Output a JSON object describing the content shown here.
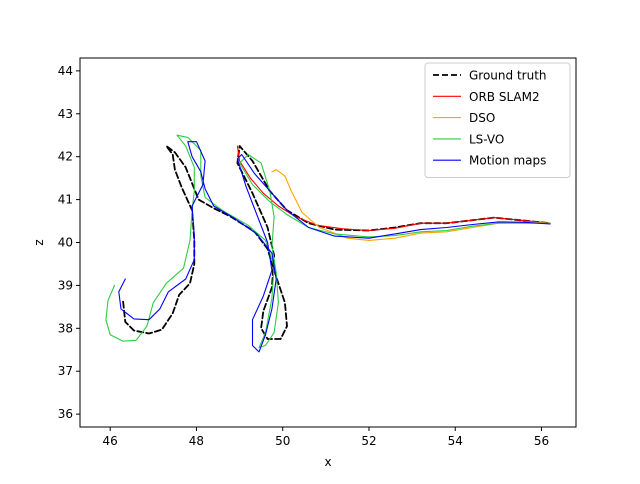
{
  "chart_data": {
    "type": "line",
    "xlabel": "x",
    "ylabel": "z",
    "xlim": [
      45.3,
      56.8
    ],
    "ylim": [
      35.7,
      44.3
    ],
    "grid": false,
    "legend_position": "top-right",
    "xticks": [
      46,
      48,
      50,
      52,
      54,
      56
    ],
    "yticks": [
      36,
      37,
      38,
      39,
      40,
      41,
      42,
      43,
      44
    ],
    "series": [
      {
        "name": "Ground truth",
        "color": "#000000",
        "dashed": true,
        "points": [
          [
            46.3,
            38.62
          ],
          [
            46.35,
            38.15
          ],
          [
            46.55,
            37.95
          ],
          [
            46.9,
            37.88
          ],
          [
            47.2,
            37.97
          ],
          [
            47.45,
            38.35
          ],
          [
            47.6,
            38.78
          ],
          [
            47.85,
            39.05
          ],
          [
            47.95,
            39.5
          ],
          [
            47.95,
            40.05
          ],
          [
            47.9,
            40.75
          ],
          [
            47.65,
            41.3
          ],
          [
            47.5,
            41.7
          ],
          [
            47.45,
            42.05
          ],
          [
            47.3,
            42.25
          ],
          [
            47.5,
            42.1
          ],
          [
            47.75,
            41.75
          ],
          [
            48.05,
            41.0
          ],
          [
            48.4,
            40.8
          ],
          [
            48.8,
            40.6
          ],
          [
            49.35,
            40.25
          ],
          [
            49.65,
            39.85
          ],
          [
            49.85,
            39.2
          ],
          [
            50.05,
            38.6
          ],
          [
            50.1,
            38.05
          ],
          [
            49.95,
            37.75
          ],
          [
            49.65,
            37.75
          ],
          [
            49.5,
            38.0
          ],
          [
            49.55,
            38.4
          ],
          [
            49.75,
            38.95
          ],
          [
            49.8,
            39.7
          ],
          [
            49.65,
            40.35
          ],
          [
            49.3,
            41.15
          ],
          [
            48.95,
            41.85
          ],
          [
            49.0,
            42.25
          ],
          [
            49.3,
            41.9
          ],
          [
            49.7,
            41.2
          ],
          [
            50.1,
            40.75
          ],
          [
            50.6,
            40.45
          ],
          [
            51.2,
            40.3
          ],
          [
            52.0,
            40.28
          ],
          [
            52.6,
            40.35
          ],
          [
            53.2,
            40.45
          ],
          [
            53.8,
            40.45
          ],
          [
            54.4,
            40.52
          ],
          [
            54.9,
            40.58
          ],
          [
            55.5,
            40.52
          ],
          [
            56.2,
            40.45
          ]
        ]
      },
      {
        "name": "ORB SLAM2",
        "color": "#ff0000",
        "dashed": false,
        "points": [
          [
            48.95,
            42.25
          ],
          [
            49.0,
            41.9
          ],
          [
            49.25,
            41.5
          ],
          [
            49.55,
            41.15
          ],
          [
            49.9,
            40.85
          ],
          [
            50.3,
            40.6
          ],
          [
            50.8,
            40.4
          ],
          [
            51.4,
            40.32
          ],
          [
            52.0,
            40.28
          ],
          [
            52.6,
            40.33
          ],
          [
            53.2,
            40.45
          ],
          [
            53.8,
            40.45
          ],
          [
            54.4,
            40.52
          ],
          [
            54.9,
            40.58
          ],
          [
            55.5,
            40.52
          ],
          [
            56.2,
            40.45
          ]
        ]
      },
      {
        "name": "DSO",
        "color": "#ffa500",
        "dashed": false,
        "points": [
          [
            49.75,
            41.65
          ],
          [
            49.85,
            41.7
          ],
          [
            50.05,
            41.55
          ],
          [
            50.2,
            41.2
          ],
          [
            50.45,
            40.7
          ],
          [
            50.85,
            40.35
          ],
          [
            51.5,
            40.1
          ],
          [
            52.0,
            40.05
          ],
          [
            52.6,
            40.1
          ],
          [
            53.2,
            40.22
          ],
          [
            53.8,
            40.25
          ],
          [
            54.4,
            40.35
          ],
          [
            55.0,
            40.45
          ],
          [
            55.6,
            40.48
          ],
          [
            56.2,
            40.45
          ]
        ]
      },
      {
        "name": "LS-VO",
        "color": "#2ecc40",
        "dashed": false,
        "points": [
          [
            46.1,
            39.0
          ],
          [
            45.95,
            38.65
          ],
          [
            45.9,
            38.2
          ],
          [
            46.0,
            37.85
          ],
          [
            46.3,
            37.7
          ],
          [
            46.6,
            37.72
          ],
          [
            46.85,
            38.05
          ],
          [
            47.0,
            38.6
          ],
          [
            47.3,
            39.05
          ],
          [
            47.7,
            39.4
          ],
          [
            47.85,
            40.05
          ],
          [
            47.9,
            40.75
          ],
          [
            47.95,
            41.2
          ],
          [
            47.95,
            41.75
          ],
          [
            47.75,
            42.25
          ],
          [
            47.55,
            42.5
          ],
          [
            47.8,
            42.45
          ],
          [
            48.1,
            42.15
          ],
          [
            48.1,
            41.55
          ],
          [
            48.2,
            41.05
          ],
          [
            48.6,
            40.75
          ],
          [
            49.2,
            40.4
          ],
          [
            49.6,
            40.05
          ],
          [
            49.8,
            39.45
          ],
          [
            49.75,
            38.7
          ],
          [
            49.6,
            37.9
          ],
          [
            49.45,
            37.55
          ],
          [
            49.6,
            37.6
          ],
          [
            49.8,
            37.9
          ],
          [
            49.9,
            38.6
          ],
          [
            49.85,
            39.3
          ],
          [
            49.75,
            39.9
          ],
          [
            49.8,
            40.6
          ],
          [
            49.7,
            41.2
          ],
          [
            49.5,
            41.85
          ],
          [
            49.2,
            42.05
          ],
          [
            49.0,
            41.85
          ],
          [
            49.3,
            41.35
          ],
          [
            49.7,
            40.95
          ],
          [
            50.1,
            40.65
          ],
          [
            50.6,
            40.35
          ],
          [
            51.2,
            40.2
          ],
          [
            52.0,
            40.13
          ],
          [
            52.6,
            40.16
          ],
          [
            53.2,
            40.25
          ],
          [
            53.8,
            40.28
          ],
          [
            54.4,
            40.38
          ],
          [
            55.0,
            40.45
          ],
          [
            55.6,
            40.45
          ],
          [
            56.2,
            40.45
          ]
        ]
      },
      {
        "name": "Motion maps",
        "color": "#0000ff",
        "dashed": false,
        "points": [
          [
            46.35,
            39.15
          ],
          [
            46.2,
            38.85
          ],
          [
            46.25,
            38.45
          ],
          [
            46.55,
            38.22
          ],
          [
            46.9,
            38.2
          ],
          [
            47.15,
            38.45
          ],
          [
            47.35,
            38.85
          ],
          [
            47.75,
            39.15
          ],
          [
            47.95,
            39.6
          ],
          [
            47.95,
            40.15
          ],
          [
            47.9,
            40.85
          ],
          [
            48.15,
            41.35
          ],
          [
            48.2,
            41.9
          ],
          [
            48.0,
            42.35
          ],
          [
            47.8,
            42.35
          ],
          [
            47.9,
            42.0
          ],
          [
            48.1,
            41.65
          ],
          [
            48.2,
            41.25
          ],
          [
            48.4,
            40.85
          ],
          [
            48.9,
            40.55
          ],
          [
            49.4,
            40.2
          ],
          [
            49.75,
            39.75
          ],
          [
            49.85,
            39.15
          ],
          [
            49.75,
            38.45
          ],
          [
            49.6,
            37.85
          ],
          [
            49.45,
            37.45
          ],
          [
            49.3,
            37.6
          ],
          [
            49.3,
            38.2
          ],
          [
            49.55,
            38.75
          ],
          [
            49.75,
            39.35
          ],
          [
            49.65,
            40.0
          ],
          [
            49.4,
            40.65
          ],
          [
            49.15,
            41.3
          ],
          [
            48.95,
            41.95
          ],
          [
            49.05,
            42.05
          ],
          [
            49.35,
            41.6
          ],
          [
            49.75,
            41.15
          ],
          [
            50.1,
            40.75
          ],
          [
            50.6,
            40.35
          ],
          [
            51.2,
            40.15
          ],
          [
            52.0,
            40.1
          ],
          [
            52.6,
            40.2
          ],
          [
            53.2,
            40.3
          ],
          [
            53.8,
            40.35
          ],
          [
            54.4,
            40.42
          ],
          [
            55.0,
            40.48
          ],
          [
            55.6,
            40.47
          ],
          [
            56.2,
            40.43
          ]
        ]
      }
    ]
  }
}
